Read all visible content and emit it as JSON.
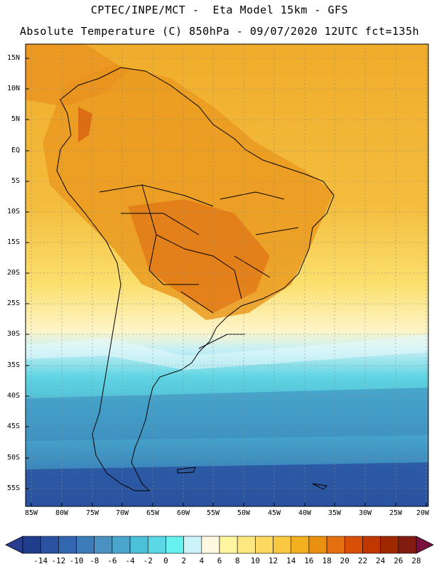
{
  "header": {
    "line1": "CPTEC/INPE/MCT -  Eta Model 15km - GFS",
    "line2": "Absolute Temperature (C) 850hPa - 09/07/2020 12UTC fct=135h"
  },
  "map": {
    "region": "South America",
    "lat_labels": [
      "15N",
      "10N",
      "5N",
      "EQ",
      "5S",
      "10S",
      "15S",
      "20S",
      "25S",
      "30S",
      "35S",
      "40S",
      "45S",
      "50S",
      "55S"
    ],
    "lon_labels": [
      "85W",
      "80W",
      "75W",
      "70W",
      "65W",
      "60W",
      "55W",
      "50W",
      "45W",
      "40W",
      "35W",
      "30W",
      "25W",
      "20W"
    ]
  },
  "colorbar": {
    "labels": [
      "-14",
      "-12",
      "-10",
      "-8",
      "-6",
      "-4",
      "-2",
      "0",
      "2",
      "4",
      "6",
      "8",
      "10",
      "12",
      "14",
      "16",
      "18",
      "20",
      "22",
      "24",
      "26",
      "28"
    ],
    "colors": [
      "#1f3d8c",
      "#2a52a0",
      "#3366b0",
      "#3d7ab8",
      "#4a90c0",
      "#4aa6cc",
      "#4cc0d8",
      "#5ad8e6",
      "#66f0f0",
      "#ccf4f8",
      "#fff8e0",
      "#fff5a0",
      "#fde880",
      "#fcd860",
      "#f7c840",
      "#f2b020",
      "#ea9010",
      "#e57010",
      "#d85008",
      "#c03800",
      "#a02800",
      "#801c10"
    ],
    "under_color": "#283c90",
    "over_color": "#7a1040"
  }
}
